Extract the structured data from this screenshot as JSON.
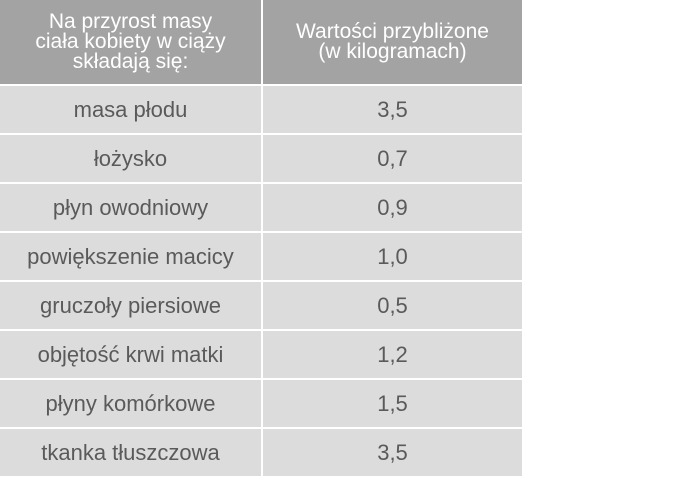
{
  "table": {
    "header": {
      "col1_lines": [
        "Na przyrost masy",
        "ciała kobiety w ciąży",
        "składają się:"
      ],
      "col2_lines": [
        "Wartości przybliżone",
        "(w kilogramach)"
      ]
    },
    "rows": [
      {
        "component": "masa płodu",
        "value": "3,5"
      },
      {
        "component": "łożysko",
        "value": "0,7"
      },
      {
        "component": "płyn owodniowy",
        "value": "0,9"
      },
      {
        "component": "powiększenie macicy",
        "value": "1,0"
      },
      {
        "component": "gruczoły piersiowe",
        "value": "0,5"
      },
      {
        "component": "objętość krwi matki",
        "value": "1,2"
      },
      {
        "component": "płyny komórkowe",
        "value": "1,5"
      },
      {
        "component": "tkanka tłuszczowa",
        "value": "3,5"
      }
    ]
  },
  "colors": {
    "header_bg": "#a3a3a3",
    "row_bg": "#dcdcdc",
    "header_text": "#ffffff",
    "row_text": "#5a5a5a"
  }
}
